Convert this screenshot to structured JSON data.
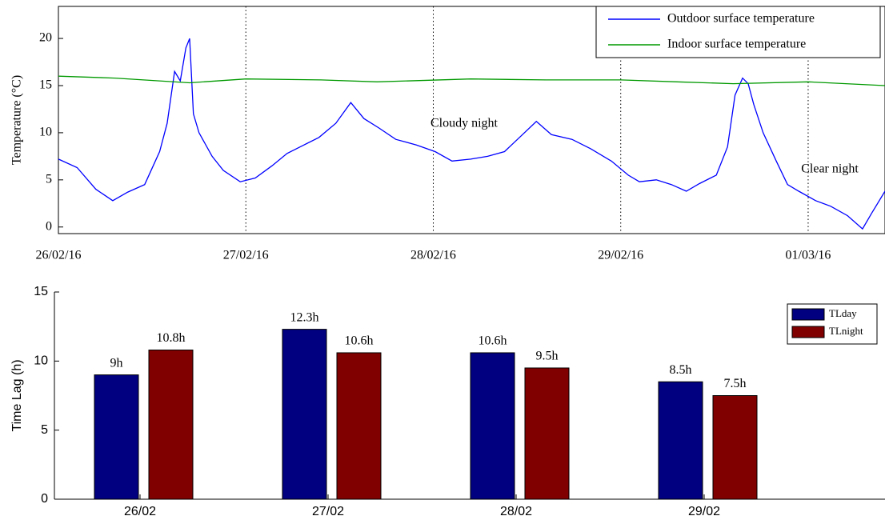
{
  "chart_data": [
    {
      "type": "line",
      "y_label": "Temperature (°C)",
      "xlim": [
        0,
        4.41
      ],
      "ylim": [
        -0.7,
        23.4
      ],
      "xticks": [
        {
          "value": 0,
          "label": "26/02/16"
        },
        {
          "value": 1,
          "label": "27/02/16"
        },
        {
          "value": 2,
          "label": "28/02/16"
        },
        {
          "value": 3,
          "label": "29/02/16"
        },
        {
          "value": 4,
          "label": "01/03/16"
        }
      ],
      "yticks": [
        0,
        5,
        10,
        15,
        20
      ],
      "x_grid": true,
      "legend": "top-right",
      "annotations": [
        "Cloudy night",
        "Clear night"
      ],
      "series": [
        {
          "name": "Outdoor surface temperature",
          "color": "#0000ff",
          "x": [
            0,
            0.1,
            0.2,
            0.29,
            0.37,
            0.46,
            0.54,
            0.58,
            0.62,
            0.65,
            0.68,
            0.7,
            0.72,
            0.75,
            0.82,
            0.88,
            0.97,
            1.05,
            1.14,
            1.22,
            1.31,
            1.39,
            1.48,
            1.56,
            1.63,
            1.71,
            1.8,
            1.91,
            2.01,
            2.1,
            2.2,
            2.29,
            2.38,
            2.46,
            2.55,
            2.63,
            2.74,
            2.84,
            2.95,
            3.04,
            3.1,
            3.19,
            3.27,
            3.35,
            3.42,
            3.51,
            3.57,
            3.61,
            3.65,
            3.68,
            3.71,
            3.76,
            3.83,
            3.89,
            3.95,
            4.04,
            4.12,
            4.21,
            4.29,
            4.34,
            4.41
          ],
          "values": [
            7.2,
            6.3,
            4.0,
            2.8,
            3.7,
            4.5,
            8,
            11,
            16.5,
            15.5,
            19,
            20,
            12,
            10,
            7.5,
            6,
            4.8,
            5.2,
            6.5,
            7.8,
            8.7,
            9.5,
            11,
            13.2,
            11.5,
            10.5,
            9.3,
            8.7,
            8,
            7,
            7.2,
            7.5,
            8,
            9.5,
            11.2,
            9.8,
            9.3,
            8.3,
            7,
            5.5,
            4.8,
            5,
            4.5,
            3.8,
            4.6,
            5.5,
            8.5,
            14,
            15.8,
            15.2,
            13,
            10,
            7,
            4.5,
            3.8,
            2.8,
            2.2,
            1.2,
            -0.2,
            1.5,
            3.8
          ]
        },
        {
          "name": "Indoor surface temperature",
          "color": "#009900",
          "x": [
            0,
            0.3,
            0.7,
            1.0,
            1.4,
            1.7,
            2.2,
            2.6,
            3.0,
            3.3,
            3.6,
            4.0,
            4.41
          ],
          "values": [
            16,
            15.8,
            15.3,
            15.7,
            15.6,
            15.4,
            15.7,
            15.6,
            15.6,
            15.4,
            15.2,
            15.4,
            15
          ]
        }
      ]
    },
    {
      "type": "bar",
      "y_label": "Time Lag (h)",
      "categories": [
        "26/02",
        "27/02",
        "28/02",
        "29/02"
      ],
      "ylim": [
        0,
        15
      ],
      "yticks": [
        0,
        5,
        10,
        15
      ],
      "legend": "top-right",
      "series": [
        {
          "name": "TLday",
          "color": "#000080",
          "values": [
            9,
            12.3,
            10.6,
            8.5
          ],
          "value_labels": [
            "9h",
            "12.3h",
            "10.6h",
            "8.5h"
          ]
        },
        {
          "name": "TLnight",
          "color": "#800000",
          "values": [
            10.8,
            10.6,
            9.5,
            7.5
          ],
          "value_labels": [
            "10.8h",
            "10.6h",
            "9.5h",
            "7.5h"
          ]
        }
      ]
    }
  ]
}
